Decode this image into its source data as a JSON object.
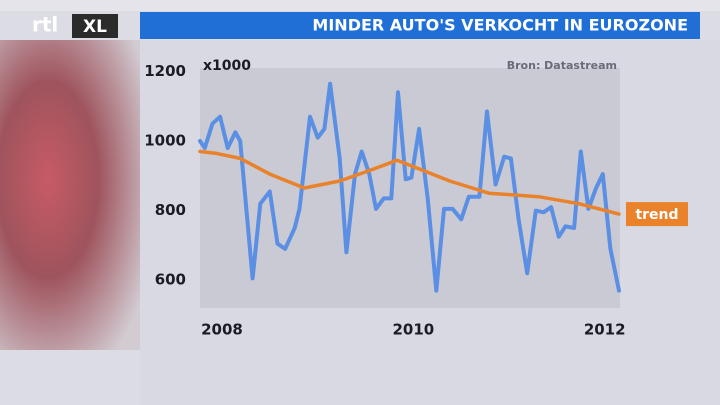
{
  "logo": [
    "rtl",
    "XL"
  ],
  "chart_data": {
    "type": "line",
    "title": "MINDER AUTO'S VERKOCHT IN EUROZONE",
    "y_unit": "x1000",
    "source": "Bron: Datastream",
    "xlim": [
      2007.77,
      2012.16
    ],
    "xticks": [
      2008,
      2010,
      2012
    ],
    "ylim": [
      520,
      1210
    ],
    "yticks": [
      600,
      800,
      1000,
      1200
    ],
    "series": [
      {
        "color": "#5b8fe3",
        "x": [
          2007.77,
          2007.82,
          2007.9,
          2007.98,
          2008.06,
          2008.14,
          2008.19,
          2008.32,
          2008.4,
          2008.5,
          2008.58,
          2008.66,
          2008.76,
          2008.81,
          2008.92,
          2009.0,
          2009.07,
          2009.13,
          2009.23,
          2009.3,
          2009.39,
          2009.46,
          2009.54,
          2009.61,
          2009.69,
          2009.77,
          2009.84,
          2009.92,
          2009.98,
          2010.06,
          2010.15,
          2010.24,
          2010.32,
          2010.41,
          2010.5,
          2010.58,
          2010.69,
          2010.77,
          2010.86,
          2010.95,
          2011.02,
          2011.1,
          2011.19,
          2011.28,
          2011.36,
          2011.44,
          2011.52,
          2011.59,
          2011.68,
          2011.75,
          2011.83,
          2011.91,
          2011.98,
          2012.06,
          2012.15
        ],
        "values": [
          1000,
          980,
          1050,
          1070,
          980,
          1025,
          1000,
          605,
          820,
          855,
          705,
          690,
          750,
          805,
          1070,
          1010,
          1035,
          1165,
          950,
          680,
          905,
          970,
          905,
          805,
          835,
          835,
          1140,
          890,
          895,
          1035,
          835,
          570,
          805,
          805,
          775,
          840,
          840,
          1085,
          875,
          955,
          950,
          775,
          620,
          800,
          795,
          810,
          725,
          755,
          750,
          970,
          805,
          865,
          905,
          690,
          570
        ]
      },
      {
        "name": "trend",
        "color": "#e9822a",
        "x": [
          2007.77,
          2007.93,
          2008.19,
          2008.5,
          2008.86,
          2009.23,
          2009.54,
          2009.83,
          2010.06,
          2010.38,
          2010.79,
          2011.31,
          2011.73,
          2012.15
        ],
        "values": [
          970,
          965,
          950,
          905,
          865,
          885,
          915,
          945,
          920,
          885,
          850,
          840,
          820,
          790
        ]
      }
    ]
  }
}
